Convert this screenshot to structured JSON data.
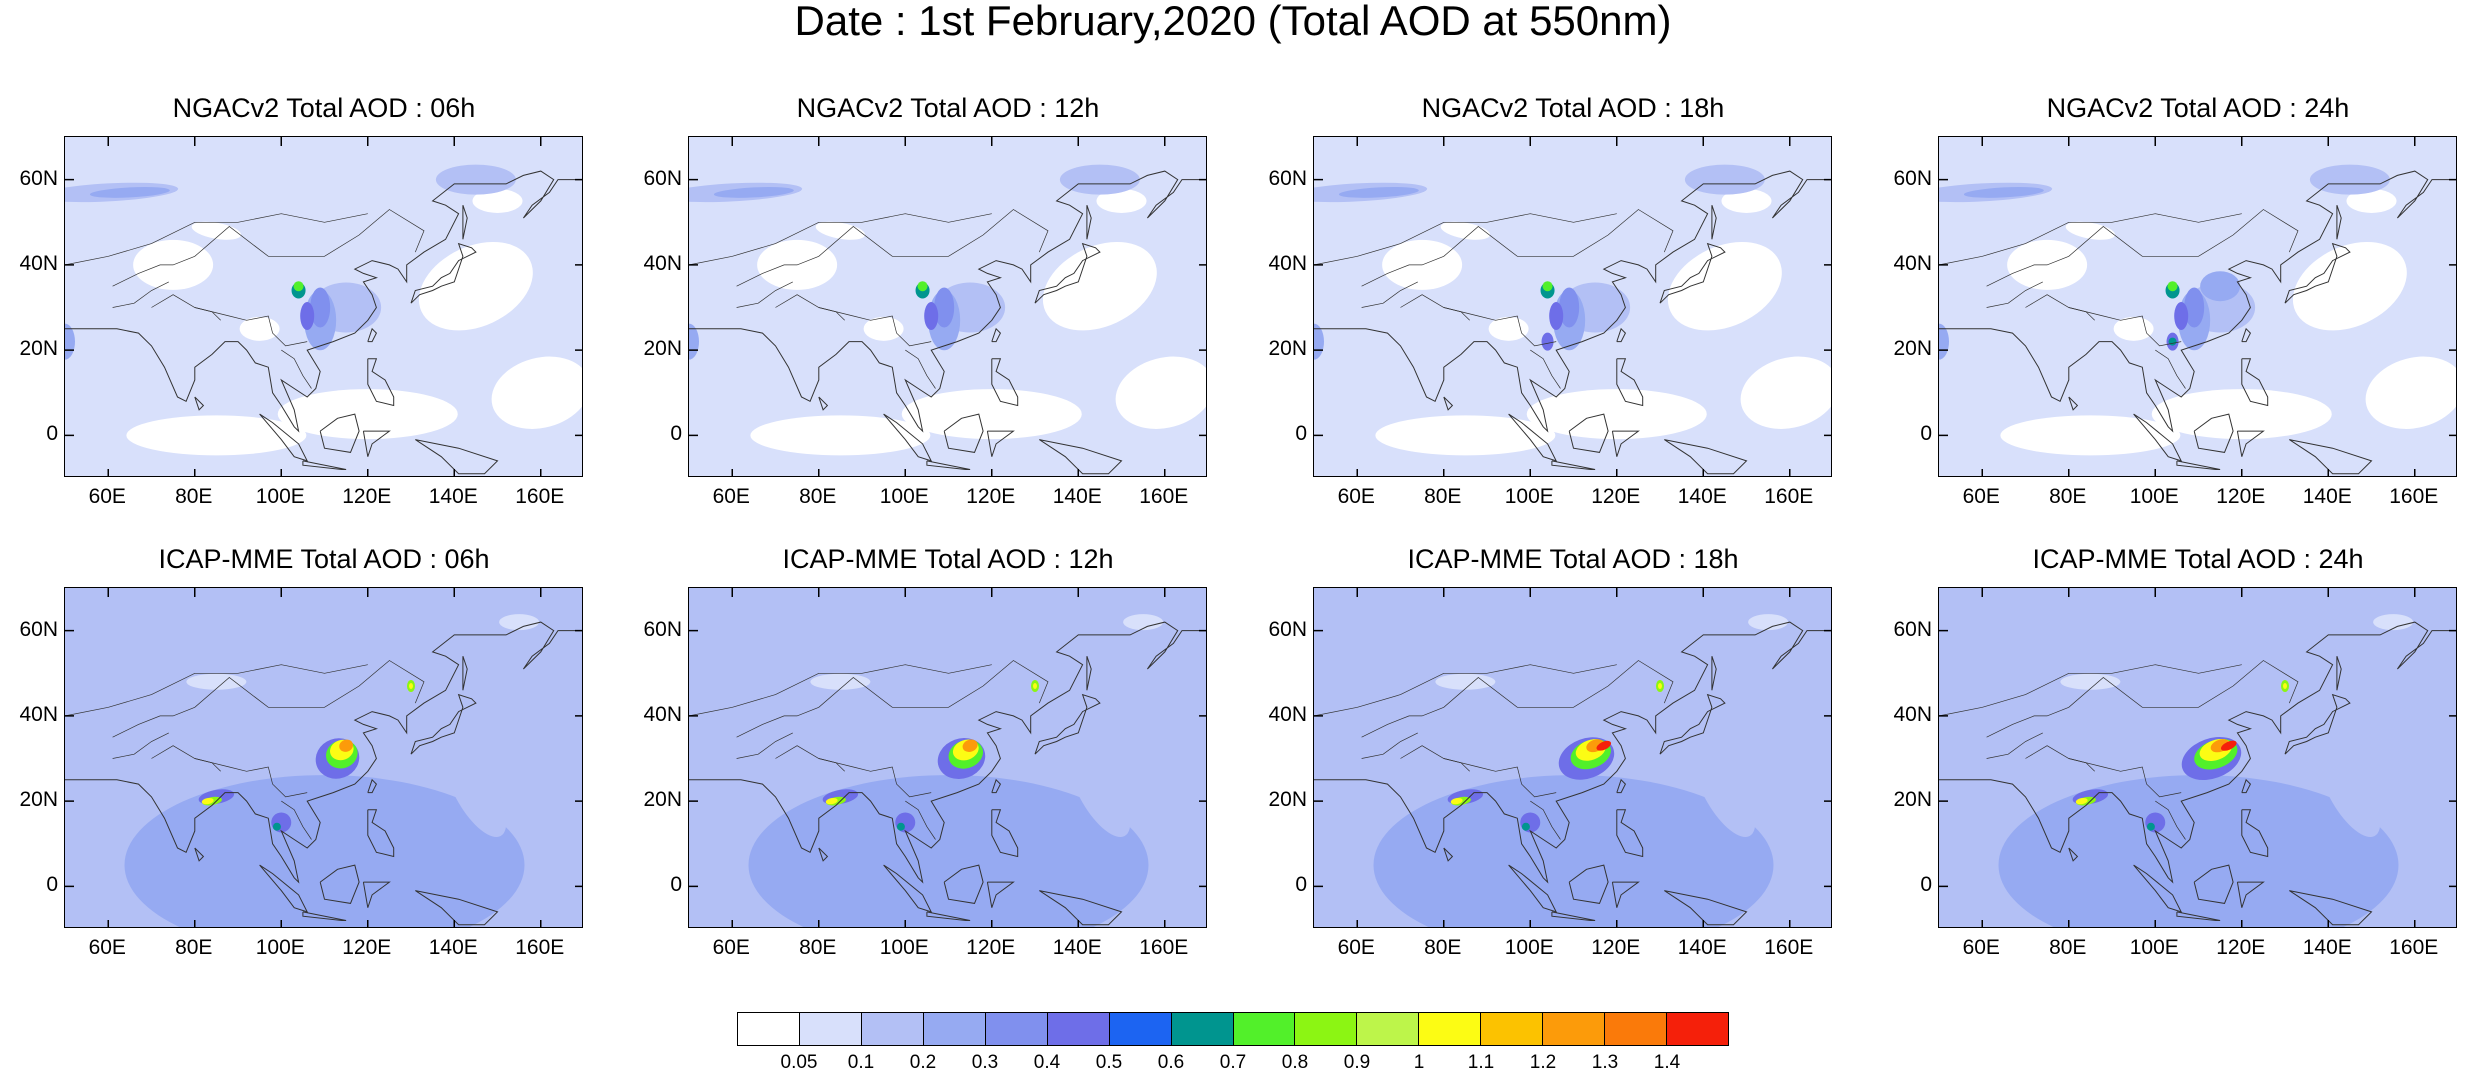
{
  "title": "Date : 1st February,2020 (Total AOD at 550nm)",
  "panels": [
    {
      "title": "NGACv2 Total AOD : 06h",
      "model": "NGACv2",
      "lead": "06h"
    },
    {
      "title": "NGACv2 Total AOD : 12h",
      "model": "NGACv2",
      "lead": "12h"
    },
    {
      "title": "NGACv2 Total AOD : 18h",
      "model": "NGACv2",
      "lead": "18h"
    },
    {
      "title": "NGACv2 Total AOD : 24h",
      "model": "NGACv2",
      "lead": "24h"
    },
    {
      "title": "ICAP-MME Total AOD : 06h",
      "model": "ICAP-MME",
      "lead": "06h"
    },
    {
      "title": "ICAP-MME Total AOD : 12h",
      "model": "ICAP-MME",
      "lead": "12h"
    },
    {
      "title": "ICAP-MME Total AOD : 18h",
      "model": "ICAP-MME",
      "lead": "18h"
    },
    {
      "title": "ICAP-MME Total AOD : 24h",
      "model": "ICAP-MME",
      "lead": "24h"
    }
  ],
  "axes": {
    "x_ticks": [
      "60E",
      "80E",
      "100E",
      "120E",
      "140E",
      "160E"
    ],
    "y_ticks": [
      "60N",
      "40N",
      "20N",
      "0"
    ],
    "lon_range": [
      50,
      170
    ],
    "lat_range": [
      -10,
      70
    ]
  },
  "colorbar": {
    "labels": [
      "0.05",
      "0.1",
      "0.2",
      "0.3",
      "0.4",
      "0.5",
      "0.6",
      "0.7",
      "0.8",
      "0.9",
      "1",
      "1.1",
      "1.2",
      "1.3",
      "1.4"
    ],
    "colors": [
      "#ffffff",
      "#d8e0fb",
      "#b3c0f5",
      "#96aaf2",
      "#8090ee",
      "#6e6ee8",
      "#1c64f2",
      "#00958f",
      "#52f02a",
      "#8cf513",
      "#bdf54a",
      "#fcfc14",
      "#fcc200",
      "#fc9b0a",
      "#fa7a0a",
      "#f5200a"
    ]
  }
}
